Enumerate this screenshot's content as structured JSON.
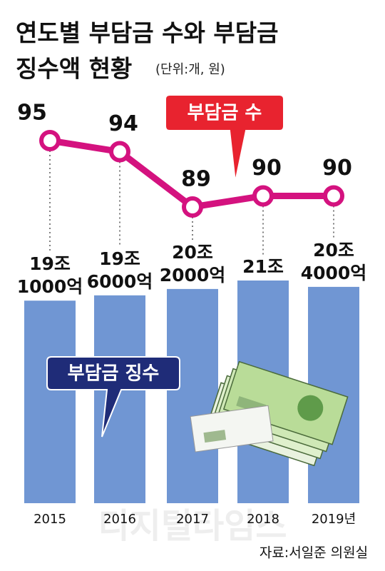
{
  "chart_data": {
    "type": "combo",
    "title": "연도별 부담금 수와 부담금",
    "title_line2": "징수액 현황",
    "subtitle": "(단위:개, 원)",
    "categories": [
      "2015",
      "2016",
      "2017",
      "2018",
      "2019년"
    ],
    "series": [
      {
        "name": "부담금 징수",
        "type": "bar",
        "color": "#7096d3",
        "values": [
          191000,
          196000,
          202000,
          210000,
          204000
        ],
        "value_labels": [
          "19조 1000억",
          "19조 6000억",
          "20조 2000억",
          "21조",
          "20조 4000억"
        ]
      },
      {
        "name": "부담금 수",
        "type": "line",
        "color": "#d4127f",
        "values": [
          95,
          94,
          89,
          90,
          90
        ]
      }
    ],
    "source": "자료:서일준 의원실",
    "watermark": "디지털타임스"
  }
}
